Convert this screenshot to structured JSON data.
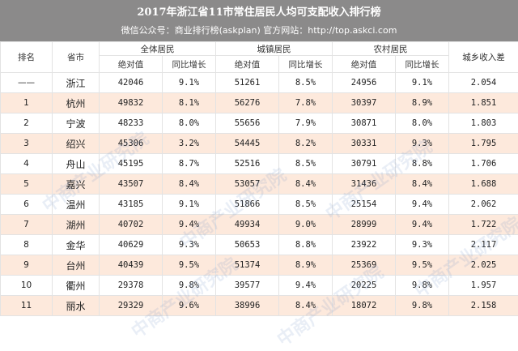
{
  "header": {
    "title": "2017年浙江省11市常住居民人均可支配收入排行榜",
    "subtitle": "微信公众号：商业排行榜(askplan)  官方网站：http://top.askci.com"
  },
  "columns": {
    "rank": "排名",
    "city": "省市",
    "all": "全体居民",
    "urban": "城镇居民",
    "rural": "农村居民",
    "ratio": "城乡收入差",
    "abs": "绝对值",
    "growth": "同比增长"
  },
  "watermark_text": "中商产业研究院",
  "rows": [
    {
      "rank": "——",
      "city": "浙江",
      "all_abs": "42046",
      "all_growth": "9.1%",
      "urban_abs": "51261",
      "urban_growth": "8.5%",
      "rural_abs": "24956",
      "rural_growth": "9.1%",
      "ratio": "2.054"
    },
    {
      "rank": "1",
      "city": "杭州",
      "all_abs": "49832",
      "all_growth": "8.1%",
      "urban_abs": "56276",
      "urban_growth": "7.8%",
      "rural_abs": "30397",
      "rural_growth": "8.9%",
      "ratio": "1.851"
    },
    {
      "rank": "2",
      "city": "宁波",
      "all_abs": "48233",
      "all_growth": "8.0%",
      "urban_abs": "55656",
      "urban_growth": "7.9%",
      "rural_abs": "30871",
      "rural_growth": "8.0%",
      "ratio": "1.803"
    },
    {
      "rank": "3",
      "city": "绍兴",
      "all_abs": "45306",
      "all_growth": "3.2%",
      "urban_abs": "54445",
      "urban_growth": "8.2%",
      "rural_abs": "30331",
      "rural_growth": "9.3%",
      "ratio": "1.795"
    },
    {
      "rank": "4",
      "city": "舟山",
      "all_abs": "45195",
      "all_growth": "8.7%",
      "urban_abs": "52516",
      "urban_growth": "8.5%",
      "rural_abs": "30791",
      "rural_growth": "8.8%",
      "ratio": "1.706"
    },
    {
      "rank": "5",
      "city": "嘉兴",
      "all_abs": "43507",
      "all_growth": "8.4%",
      "urban_abs": "53057",
      "urban_growth": "8.4%",
      "rural_abs": "31436",
      "rural_growth": "8.4%",
      "ratio": "1.688"
    },
    {
      "rank": "6",
      "city": "温州",
      "all_abs": "43185",
      "all_growth": "9.1%",
      "urban_abs": "51866",
      "urban_growth": "8.5%",
      "rural_abs": "25154",
      "rural_growth": "9.4%",
      "ratio": "2.062"
    },
    {
      "rank": "7",
      "city": "湖州",
      "all_abs": "40702",
      "all_growth": "9.4%",
      "urban_abs": "49934",
      "urban_growth": "9.0%",
      "rural_abs": "28999",
      "rural_growth": "9.4%",
      "ratio": "1.722"
    },
    {
      "rank": "8",
      "city": "金华",
      "all_abs": "40629",
      "all_growth": "9.3%",
      "urban_abs": "50653",
      "urban_growth": "8.8%",
      "rural_abs": "23922",
      "rural_growth": "9.3%",
      "ratio": "2.117"
    },
    {
      "rank": "9",
      "city": "台州",
      "all_abs": "40439",
      "all_growth": "9.5%",
      "urban_abs": "51374",
      "urban_growth": "8.9%",
      "rural_abs": "25369",
      "rural_growth": "9.5%",
      "ratio": "2.025"
    },
    {
      "rank": "10",
      "city": "衢州",
      "all_abs": "29378",
      "all_growth": "9.8%",
      "urban_abs": "39577",
      "urban_growth": "9.4%",
      "rural_abs": "20225",
      "rural_growth": "9.8%",
      "ratio": "1.957"
    },
    {
      "rank": "11",
      "city": "丽水",
      "all_abs": "29329",
      "all_growth": "9.6%",
      "urban_abs": "38996",
      "urban_growth": "8.4%",
      "rural_abs": "18072",
      "rural_growth": "9.8%",
      "ratio": "2.158"
    }
  ]
}
